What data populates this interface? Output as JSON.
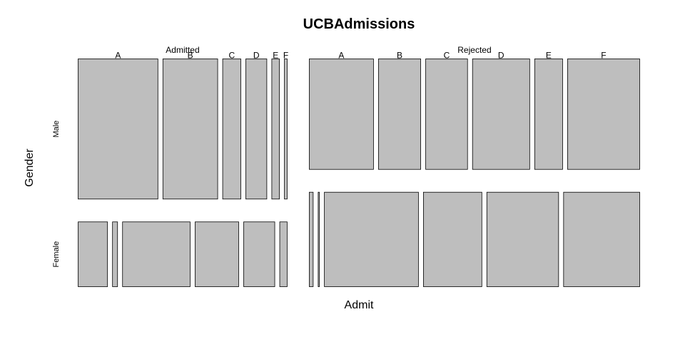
{
  "chart_data": {
    "type": "mosaic",
    "title": "UCBAdmissions",
    "xlabel": "Admit",
    "ylabel": "Gender",
    "admit_levels": [
      "Admitted",
      "Rejected"
    ],
    "gender_levels": [
      "Male",
      "Female"
    ],
    "dept_levels": [
      "A",
      "B",
      "C",
      "D",
      "E",
      "F"
    ],
    "counts": {
      "Admitted": {
        "Male": [
          512,
          353,
          120,
          138,
          53,
          22
        ],
        "Female": [
          89,
          17,
          202,
          131,
          94,
          24
        ]
      },
      "Rejected": {
        "Male": [
          313,
          207,
          205,
          279,
          138,
          351
        ],
        "Female": [
          19,
          8,
          391,
          244,
          299,
          317
        ]
      }
    },
    "fill_color": "#bebebe",
    "stroke_color": "#000000"
  }
}
